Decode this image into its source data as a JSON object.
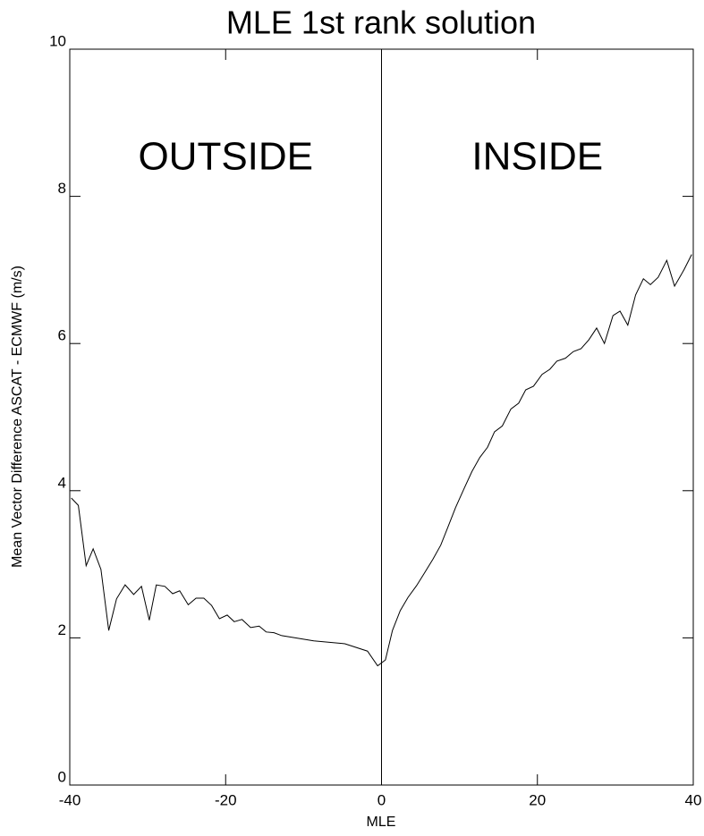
{
  "chart_data": {
    "type": "line",
    "title": "MLE 1st rank solution",
    "xlabel": "MLE",
    "ylabel": "Mean Vector Difference ASCAT - ECMWF (m/s)",
    "xlim": [
      -40,
      40
    ],
    "ylim": [
      0,
      10
    ],
    "xticks": [
      -40,
      -20,
      0,
      20,
      40
    ],
    "yticks": [
      0,
      2,
      4,
      6,
      8,
      10
    ],
    "vline": 0,
    "annotations": [
      {
        "text": "OUTSIDE",
        "color": "#f03c14"
      },
      {
        "text": "INSIDE",
        "color": "#33339a"
      }
    ],
    "x": [
      -39.8,
      -38.9,
      -37.9,
      -37,
      -36,
      -35,
      -34,
      -32.9,
      -31.8,
      -30.8,
      -29.8,
      -28.9,
      -27.8,
      -26.8,
      -25.9,
      -24.8,
      -23.8,
      -22.8,
      -21.8,
      -20.8,
      -19.8,
      -18.9,
      -17.9,
      -16.8,
      -15.7,
      -14.8,
      -13.8,
      -12.8,
      -8.7,
      -4.7,
      -1.8,
      -0.5,
      0.5,
      1.4,
      2.4,
      3.4,
      4.5,
      5.5,
      6.6,
      7.6,
      8.5,
      9.5,
      10.6,
      11.6,
      12.6,
      13.6,
      14.5,
      15.5,
      16.6,
      17.6,
      18.5,
      19.5,
      20.6,
      21.6,
      22.5,
      23.6,
      24.6,
      25.6,
      26.6,
      27.6,
      28.6,
      29.7,
      30.6,
      31.6,
      32.6,
      33.6,
      34.5,
      35.5,
      36.6,
      37.6,
      38.8,
      39.8
    ],
    "series": [
      {
        "color": "#000000",
        "values": [
          3.9,
          3.8,
          2.98,
          3.21,
          2.93,
          2.1,
          2.53,
          2.72,
          2.59,
          2.7,
          2.24,
          2.72,
          2.7,
          2.6,
          2.64,
          2.45,
          2.54,
          2.54,
          2.44,
          2.26,
          2.31,
          2.22,
          2.25,
          2.14,
          2.16,
          2.08,
          2.07,
          2.03,
          1.96,
          1.92,
          1.82,
          1.62,
          1.7,
          2.1,
          2.37,
          2.55,
          2.71,
          2.88,
          3.07,
          3.26,
          3.5,
          3.77,
          4.03,
          4.26,
          4.45,
          4.59,
          4.8,
          4.88,
          5.11,
          5.19,
          5.37,
          5.42,
          5.58,
          5.65,
          5.76,
          5.8,
          5.89,
          5.93,
          6.05,
          6.21,
          6.0,
          6.38,
          6.44,
          6.25,
          6.66,
          6.88,
          6.8,
          6.9,
          7.13,
          6.78,
          7.0,
          7.21
        ]
      }
    ]
  }
}
